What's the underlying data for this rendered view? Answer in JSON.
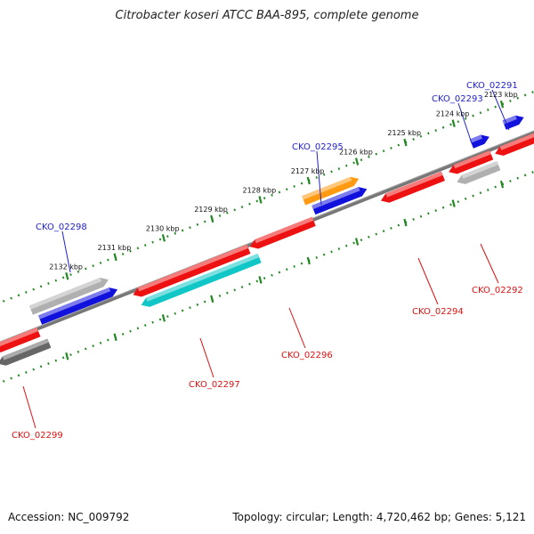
{
  "title": "Citrobacter koseri ATCC BAA-895, complete genome",
  "footer": {
    "accession": "Accession: NC_009792",
    "summary": "Topology: circular; Length: 4,720,462 bp; Genes: 5,121"
  },
  "colors": {
    "backbone": "#777777",
    "ticks": "#228822",
    "forward_label": "#2222cc",
    "reverse_label": "#dd1111",
    "red": "#ee1111",
    "blue": "#1111dd",
    "cyan": "#11c6c6",
    "orange": "#ff9a11",
    "grey": "#b0b0b0",
    "darkgrey": "#666666"
  },
  "kbp_labels": [
    "2123 kbp",
    "2124 kbp",
    "2125 kbp",
    "2126 kbp",
    "2127 kbp",
    "2128 kbp",
    "2129 kbp",
    "2130 kbp",
    "2131 kbp",
    "2132 kbp"
  ],
  "gene_labels": [
    {
      "text": "CKO_02291",
      "strand": "forward"
    },
    {
      "text": "CKO_02293",
      "strand": "forward"
    },
    {
      "text": "CKO_02295",
      "strand": "forward"
    },
    {
      "text": "CKO_02298",
      "strand": "forward"
    },
    {
      "text": "CKO_02292",
      "strand": "reverse"
    },
    {
      "text": "CKO_02294",
      "strand": "reverse"
    },
    {
      "text": "CKO_02296",
      "strand": "reverse"
    },
    {
      "text": "CKO_02297",
      "strand": "reverse"
    },
    {
      "text": "CKO_02299",
      "strand": "reverse"
    }
  ]
}
